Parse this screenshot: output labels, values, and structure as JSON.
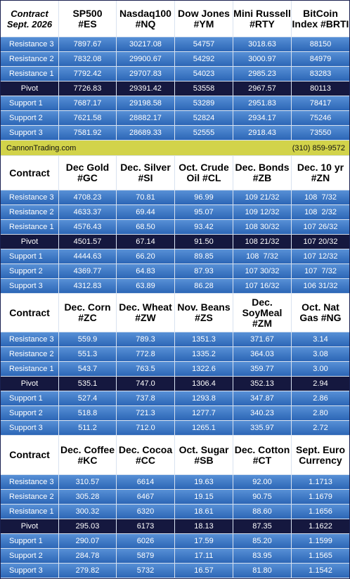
{
  "sections": [
    {
      "header": [
        "Contract\nSept. 2026",
        "SP500\n#ES",
        "Nasdaq100\n#NQ",
        "Dow Jones\n#YM",
        "Mini Russell\n#RTY",
        "BitCoin\nIndex #BRTI"
      ],
      "rows": [
        {
          "label": "Resistance 3",
          "values": [
            "7897.67",
            "30217.08",
            "54757",
            "3018.63",
            "88150"
          ]
        },
        {
          "label": "Resistance 2",
          "values": [
            "7832.08",
            "29900.67",
            "54292",
            "3000.97",
            "84979"
          ]
        },
        {
          "label": "Resistance 1",
          "values": [
            "7792.42",
            "29707.83",
            "54023",
            "2985.23",
            "83283"
          ]
        },
        {
          "label": "Pivot",
          "values": [
            "7726.83",
            "29391.42",
            "53558",
            "2967.57",
            "80113"
          ]
        },
        {
          "label": "Support 1",
          "values": [
            "7687.17",
            "29198.58",
            "53289",
            "2951.83",
            "78417"
          ]
        },
        {
          "label": "Support 2",
          "values": [
            "7621.58",
            "28882.17",
            "52824",
            "2934.17",
            "75246"
          ]
        },
        {
          "label": "Support 3",
          "values": [
            "7581.92",
            "28689.33",
            "52555",
            "2918.43",
            "73550"
          ]
        }
      ]
    },
    {
      "header": [
        "Contract",
        "Dec Gold\n#GC",
        "Dec. Silver\n#SI",
        "Oct. Crude\nOil #CL",
        "Dec. Bonds\n#ZB",
        "Dec. 10 yr\n#ZN"
      ],
      "rows": [
        {
          "label": "Resistance 3",
          "values": [
            "4708.23",
            "70.81",
            "96.99",
            "109 21/32",
            "108  7/32"
          ]
        },
        {
          "label": "Resistance 2",
          "values": [
            "4633.37",
            "69.44",
            "95.07",
            "109 12/32",
            "108  2/32"
          ]
        },
        {
          "label": "Resistance 1",
          "values": [
            "4576.43",
            "68.50",
            "93.42",
            "108 30/32",
            "107 26/32"
          ]
        },
        {
          "label": "Pivot",
          "values": [
            "4501.57",
            "67.14",
            "91.50",
            "108 21/32",
            "107 20/32"
          ]
        },
        {
          "label": "Support 1",
          "values": [
            "4444.63",
            "66.20",
            "89.85",
            "108  7/32",
            "107 12/32"
          ]
        },
        {
          "label": "Support 2",
          "values": [
            "4369.77",
            "64.83",
            "87.93",
            "107 30/32",
            "107  7/32"
          ]
        },
        {
          "label": "Support 3",
          "values": [
            "4312.83",
            "63.89",
            "86.28",
            "107 16/32",
            "106 31/32"
          ]
        }
      ]
    },
    {
      "header": [
        "Contract",
        "Dec. Corn\n#ZC",
        "Dec.  Wheat\n#ZW",
        "Nov. Beans\n#ZS",
        "Dec.\nSoyMeal\n#ZM",
        "Oct. Nat\nGas #NG"
      ],
      "rows": [
        {
          "label": "Resistance 3",
          "values": [
            "559.9",
            "789.3",
            "1351.3",
            "371.67",
            "3.14"
          ]
        },
        {
          "label": "Resistance 2",
          "values": [
            "551.3",
            "772.8",
            "1335.2",
            "364.03",
            "3.08"
          ]
        },
        {
          "label": "Resistance 1",
          "values": [
            "543.7",
            "763.5",
            "1322.6",
            "359.77",
            "3.00"
          ]
        },
        {
          "label": "Pivot",
          "values": [
            "535.1",
            "747.0",
            "1306.4",
            "352.13",
            "2.94"
          ]
        },
        {
          "label": "Support 1",
          "values": [
            "527.4",
            "737.8",
            "1293.8",
            "347.87",
            "2.86"
          ]
        },
        {
          "label": "Support 2",
          "values": [
            "518.8",
            "721.3",
            "1277.7",
            "340.23",
            "2.80"
          ]
        },
        {
          "label": "Support 3",
          "values": [
            "511.2",
            "712.0",
            "1265.1",
            "335.97",
            "2.72"
          ]
        }
      ]
    },
    {
      "header": [
        "Contract",
        "Dec. Coffee\n#KC",
        "Dec. Cocoa\n#CC",
        "Oct. Sugar\n#SB",
        "Dec. Cotton\n#CT",
        "Sept. Euro\nCurrency"
      ],
      "rows": [
        {
          "label": "Resistance 3",
          "values": [
            "310.57",
            "6614",
            "19.63",
            "92.00",
            "1.1713"
          ]
        },
        {
          "label": "Resistance 2",
          "values": [
            "305.28",
            "6467",
            "19.15",
            "90.75",
            "1.1679"
          ]
        },
        {
          "label": "Resistance 1",
          "values": [
            "300.32",
            "6320",
            "18.61",
            "88.60",
            "1.1656"
          ]
        },
        {
          "label": "Pivot",
          "values": [
            "295.03",
            "6173",
            "18.13",
            "87.35",
            "1.1622"
          ]
        },
        {
          "label": "Support 1",
          "values": [
            "290.07",
            "6026",
            "17.59",
            "85.20",
            "1.1599"
          ]
        },
        {
          "label": "Support 2",
          "values": [
            "284.78",
            "5879",
            "17.11",
            "83.95",
            "1.1565"
          ]
        },
        {
          "label": "Support 3",
          "values": [
            "279.82",
            "5732",
            "16.57",
            "81.80",
            "1.1542"
          ]
        }
      ]
    }
  ],
  "banner": {
    "site": "CannonTrading.com",
    "phone": "(310) 859-9572"
  }
}
